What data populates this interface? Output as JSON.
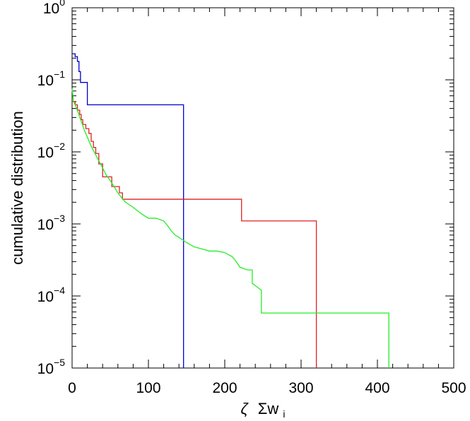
{
  "chart_data": {
    "type": "line",
    "title": "",
    "xlabel_symbol": "ζ",
    "xlabel_sum": "Σw",
    "xlabel_sub": "i",
    "ylabel": "cumulative distribution",
    "xlim": [
      0,
      500
    ],
    "ylim": [
      1e-05,
      1
    ],
    "yscale": "log",
    "grid": false,
    "legend": "none",
    "x_ticks": [
      {
        "value": 0,
        "label": "0"
      },
      {
        "value": 100,
        "label": "100"
      },
      {
        "value": 200,
        "label": "200"
      },
      {
        "value": 300,
        "label": "300"
      },
      {
        "value": 400,
        "label": "400"
      },
      {
        "value": 500,
        "label": "500"
      }
    ],
    "y_ticks": [
      {
        "value": 1,
        "base": "10",
        "exp": "0"
      },
      {
        "value": 0.1,
        "base": "10",
        "exp": "−1"
      },
      {
        "value": 0.01,
        "base": "10",
        "exp": "−2"
      },
      {
        "value": 0.001,
        "base": "10",
        "exp": "−3"
      },
      {
        "value": 0.0001,
        "base": "10",
        "exp": "−4"
      },
      {
        "value": 1e-05,
        "base": "10",
        "exp": "−5"
      }
    ],
    "series": [
      {
        "color": "#0000cc",
        "step": true,
        "points": [
          [
            0,
            0.23
          ],
          [
            4,
            0.23
          ],
          [
            4,
            0.21
          ],
          [
            7,
            0.21
          ],
          [
            7,
            0.18
          ],
          [
            9,
            0.18
          ],
          [
            9,
            0.13
          ],
          [
            11,
            0.13
          ],
          [
            11,
            0.092
          ],
          [
            20,
            0.092
          ],
          [
            20,
            0.045
          ],
          [
            146,
            0.045
          ],
          [
            146,
            1e-05
          ]
        ]
      },
      {
        "color": "#dd2222",
        "step": true,
        "points": [
          [
            0,
            0.05
          ],
          [
            4,
            0.05
          ],
          [
            4,
            0.045
          ],
          [
            7,
            0.045
          ],
          [
            7,
            0.038
          ],
          [
            10,
            0.038
          ],
          [
            10,
            0.033
          ],
          [
            12,
            0.033
          ],
          [
            12,
            0.028
          ],
          [
            14,
            0.028
          ],
          [
            14,
            0.024
          ],
          [
            18,
            0.024
          ],
          [
            18,
            0.021
          ],
          [
            22,
            0.021
          ],
          [
            22,
            0.018
          ],
          [
            25,
            0.018
          ],
          [
            25,
            0.014
          ],
          [
            28,
            0.014
          ],
          [
            28,
            0.0115
          ],
          [
            31,
            0.0115
          ],
          [
            31,
            0.0095
          ],
          [
            35,
            0.0095
          ],
          [
            35,
            0.0068
          ],
          [
            40,
            0.0068
          ],
          [
            40,
            0.0045
          ],
          [
            52,
            0.0045
          ],
          [
            52,
            0.0033
          ],
          [
            62,
            0.0033
          ],
          [
            62,
            0.0027
          ],
          [
            66,
            0.0027
          ],
          [
            66,
            0.0022
          ],
          [
            222,
            0.0022
          ],
          [
            222,
            0.0011
          ],
          [
            320,
            0.0011
          ],
          [
            320,
            1e-05
          ]
        ]
      },
      {
        "color": "#22ee22",
        "step": false,
        "points": [
          [
            0,
            0.075
          ],
          [
            1,
            0.06
          ],
          [
            2,
            0.05
          ],
          [
            4,
            0.045
          ],
          [
            6,
            0.04
          ],
          [
            8,
            0.035
          ],
          [
            10,
            0.03
          ],
          [
            13,
            0.025
          ],
          [
            16,
            0.02
          ],
          [
            20,
            0.016
          ],
          [
            25,
            0.012
          ],
          [
            30,
            0.0095
          ],
          [
            35,
            0.0075
          ],
          [
            40,
            0.006
          ],
          [
            45,
            0.0047
          ],
          [
            50,
            0.004
          ],
          [
            55,
            0.0033
          ],
          [
            60,
            0.0027
          ],
          [
            65,
            0.0023
          ],
          [
            70,
            0.002
          ],
          [
            80,
            0.0017
          ],
          [
            90,
            0.0014
          ],
          [
            100,
            0.0012
          ],
          [
            110,
            0.0012
          ],
          [
            120,
            0.0011
          ],
          [
            125,
            0.00095
          ],
          [
            130,
            0.0008
          ],
          [
            135,
            0.0007
          ],
          [
            140,
            0.00065
          ],
          [
            145,
            0.0006
          ],
          [
            150,
            0.00055
          ],
          [
            160,
            0.00048
          ],
          [
            170,
            0.00045
          ],
          [
            180,
            0.00042
          ],
          [
            190,
            0.00042
          ],
          [
            200,
            0.0004
          ],
          [
            210,
            0.00035
          ],
          [
            215,
            0.0003
          ],
          [
            220,
            0.00025
          ],
          [
            230,
            0.00023
          ],
          [
            236,
            0.00023
          ],
          [
            236,
            0.00015
          ],
          [
            248,
            0.00012
          ],
          [
            248,
            5.8e-05
          ],
          [
            415,
            5.8e-05
          ],
          [
            415,
            1e-05
          ]
        ]
      }
    ]
  }
}
